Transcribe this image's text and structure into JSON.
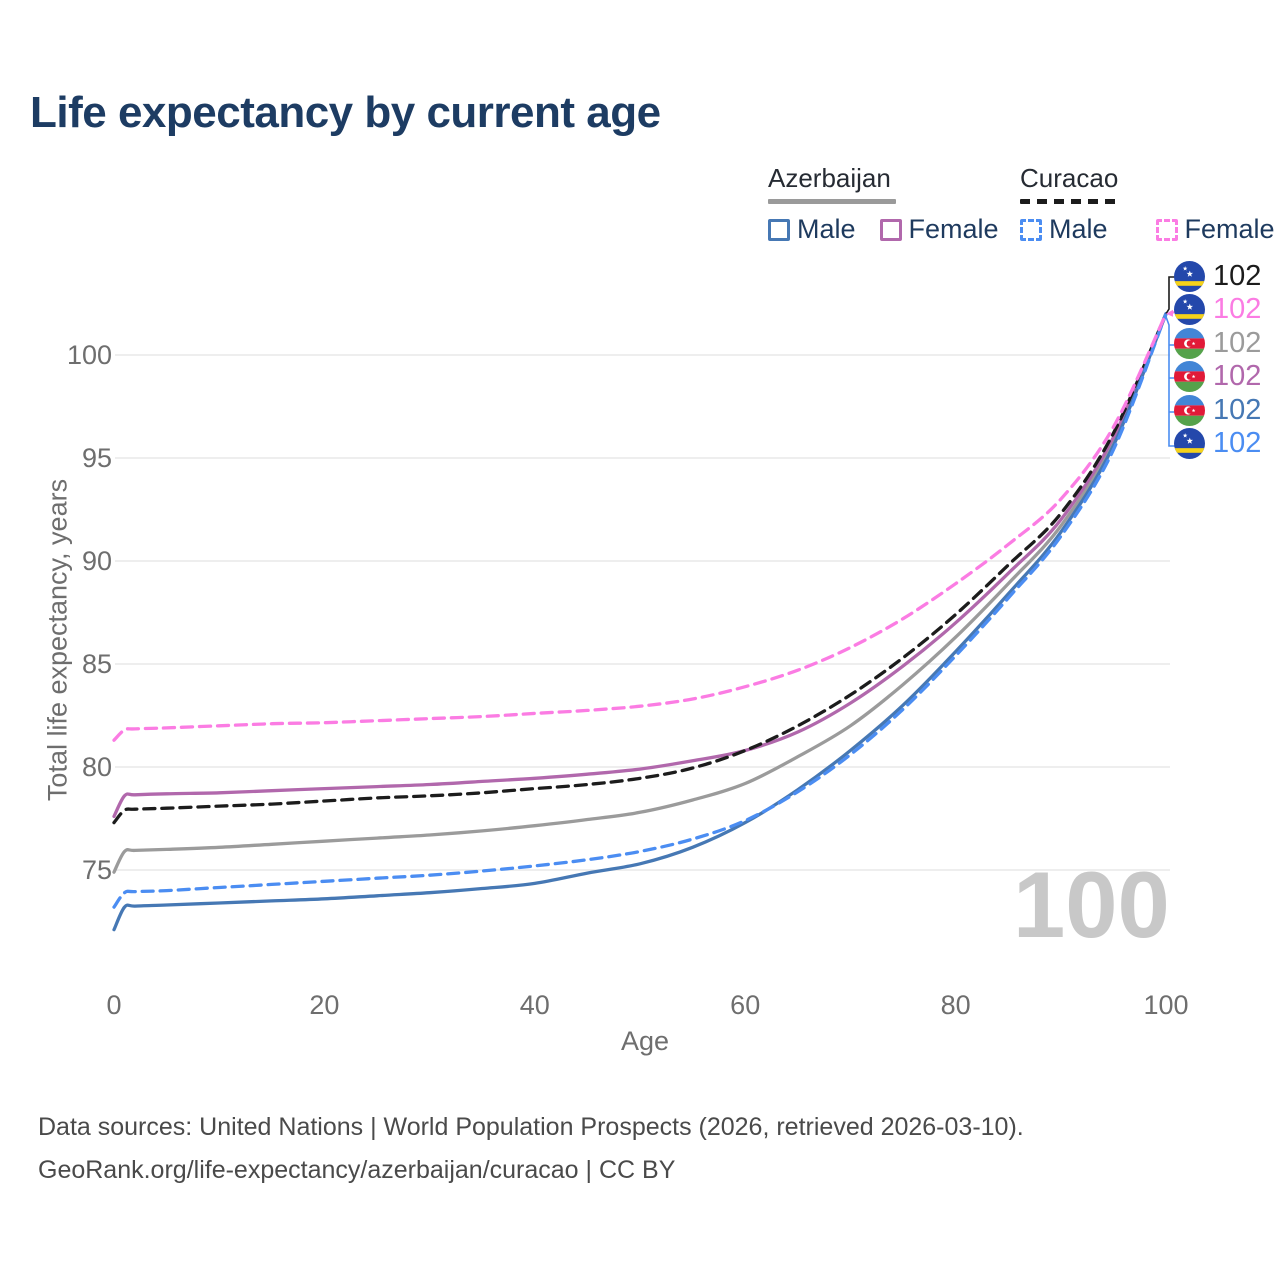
{
  "title": "Life expectancy by current age",
  "legend": {
    "groups": [
      {
        "label": "Azerbaijan",
        "line_style": "solid",
        "underline_color": "#9a9a9a",
        "items": [
          {
            "label": "Male",
            "color": "#4678b4",
            "dashed": false
          },
          {
            "label": "Female",
            "color": "#b168ac",
            "dashed": false
          }
        ]
      },
      {
        "label": "Curacao",
        "line_style": "dashed",
        "underline_color": "#1c1c1c",
        "items": [
          {
            "label": "Male",
            "color": "#4b8df2",
            "dashed": true
          },
          {
            "label": "Female",
            "color": "#fb7ce3",
            "dashed": true
          }
        ]
      }
    ]
  },
  "chart_data": {
    "type": "line",
    "title": "Life expectancy by current age",
    "xlabel": "Age",
    "ylabel": "Total life expectancy, years",
    "xticks": [
      0,
      20,
      40,
      60,
      80,
      100
    ],
    "yticks": [
      75,
      80,
      85,
      90,
      95,
      100
    ],
    "xlim": [
      0,
      100
    ],
    "ylim": [
      71.5,
      103
    ],
    "grid": "horizontal",
    "x": [
      0,
      1,
      2,
      5,
      10,
      15,
      20,
      25,
      30,
      35,
      40,
      45,
      50,
      55,
      60,
      65,
      70,
      75,
      80,
      85,
      90,
      95,
      100
    ],
    "series": [
      {
        "name": "Azerbaijan (both sexes)",
        "country": "Azerbaijan",
        "sex": "both",
        "color": "#9b9b9b",
        "dashed": false,
        "values": [
          74.9,
          75.9,
          75.95,
          76.0,
          76.1,
          76.25,
          76.4,
          76.55,
          76.7,
          76.9,
          77.15,
          77.45,
          77.8,
          78.4,
          79.2,
          80.5,
          82.0,
          84.0,
          86.3,
          88.9,
          91.7,
          95.8,
          102
        ]
      },
      {
        "name": "Azerbaijan Female",
        "country": "Azerbaijan",
        "sex": "female",
        "color": "#b168ac",
        "dashed": false,
        "values": [
          77.6,
          78.6,
          78.65,
          78.7,
          78.75,
          78.85,
          78.95,
          79.05,
          79.15,
          79.3,
          79.45,
          79.65,
          79.9,
          80.3,
          80.8,
          81.7,
          83.1,
          84.9,
          87.0,
          89.4,
          92.0,
          96.0,
          102
        ]
      },
      {
        "name": "Curacao (both sexes)",
        "country": "Curacao",
        "sex": "both",
        "color": "#1c1c1c",
        "dashed": true,
        "values": [
          77.3,
          77.9,
          77.95,
          78.0,
          78.1,
          78.2,
          78.35,
          78.5,
          78.6,
          78.75,
          78.95,
          79.15,
          79.45,
          79.95,
          80.8,
          82.0,
          83.5,
          85.3,
          87.4,
          89.8,
          92.3,
          96.2,
          102
        ]
      },
      {
        "name": "Azerbaijan Male",
        "country": "Azerbaijan",
        "sex": "male",
        "color": "#4678b4",
        "dashed": false,
        "values": [
          72.1,
          73.2,
          73.25,
          73.3,
          73.4,
          73.5,
          73.6,
          73.75,
          73.9,
          74.1,
          74.35,
          74.85,
          75.3,
          76.1,
          77.3,
          78.9,
          80.8,
          83.0,
          85.6,
          88.4,
          91.4,
          95.6,
          102
        ]
      },
      {
        "name": "Curacao Male",
        "country": "Curacao",
        "sex": "male",
        "color": "#4b8df2",
        "dashed": true,
        "values": [
          73.2,
          73.9,
          73.95,
          74.0,
          74.15,
          74.3,
          74.45,
          74.6,
          74.75,
          74.95,
          75.2,
          75.5,
          75.9,
          76.5,
          77.4,
          78.8,
          80.6,
          82.8,
          85.4,
          88.2,
          91.2,
          95.4,
          102
        ]
      },
      {
        "name": "Curacao Female",
        "country": "Curacao",
        "sex": "female",
        "color": "#fb7ce3",
        "dashed": true,
        "values": [
          81.3,
          81.8,
          81.85,
          81.9,
          82.0,
          82.1,
          82.15,
          82.25,
          82.35,
          82.45,
          82.6,
          82.75,
          82.95,
          83.3,
          83.9,
          84.7,
          85.8,
          87.2,
          88.9,
          90.8,
          93.0,
          96.5,
          102
        ]
      }
    ]
  },
  "end_labels": [
    {
      "flag": "curacao",
      "value": "102",
      "color": "#1c1c1c",
      "series": "Curacao (both sexes)"
    },
    {
      "flag": "curacao",
      "value": "102",
      "color": "#fb7ce3",
      "series": "Curacao Female"
    },
    {
      "flag": "azerbaijan",
      "value": "102",
      "color": "#9b9b9b",
      "series": "Azerbaijan (both sexes)"
    },
    {
      "flag": "azerbaijan",
      "value": "102",
      "color": "#b168ac",
      "series": "Azerbaijan Female"
    },
    {
      "flag": "azerbaijan",
      "value": "102",
      "color": "#4678b4",
      "series": "Azerbaijan Male"
    },
    {
      "flag": "curacao",
      "value": "102",
      "color": "#4b8df2",
      "series": "Curacao Male"
    }
  ],
  "watermark": "100",
  "footer": {
    "line1": "Data sources: United Nations | World Population Prospects (2026, retrieved 2026-03-10).",
    "line2": "GeoRank.org/life-expectancy/azerbaijan/curacao | CC BY"
  },
  "colors": {
    "title": "#1d3c63",
    "tick": "#6e6e6e",
    "grid": "#e9e9e9",
    "watermark": "#c8c8c8",
    "footer": "#4a4a4a"
  }
}
